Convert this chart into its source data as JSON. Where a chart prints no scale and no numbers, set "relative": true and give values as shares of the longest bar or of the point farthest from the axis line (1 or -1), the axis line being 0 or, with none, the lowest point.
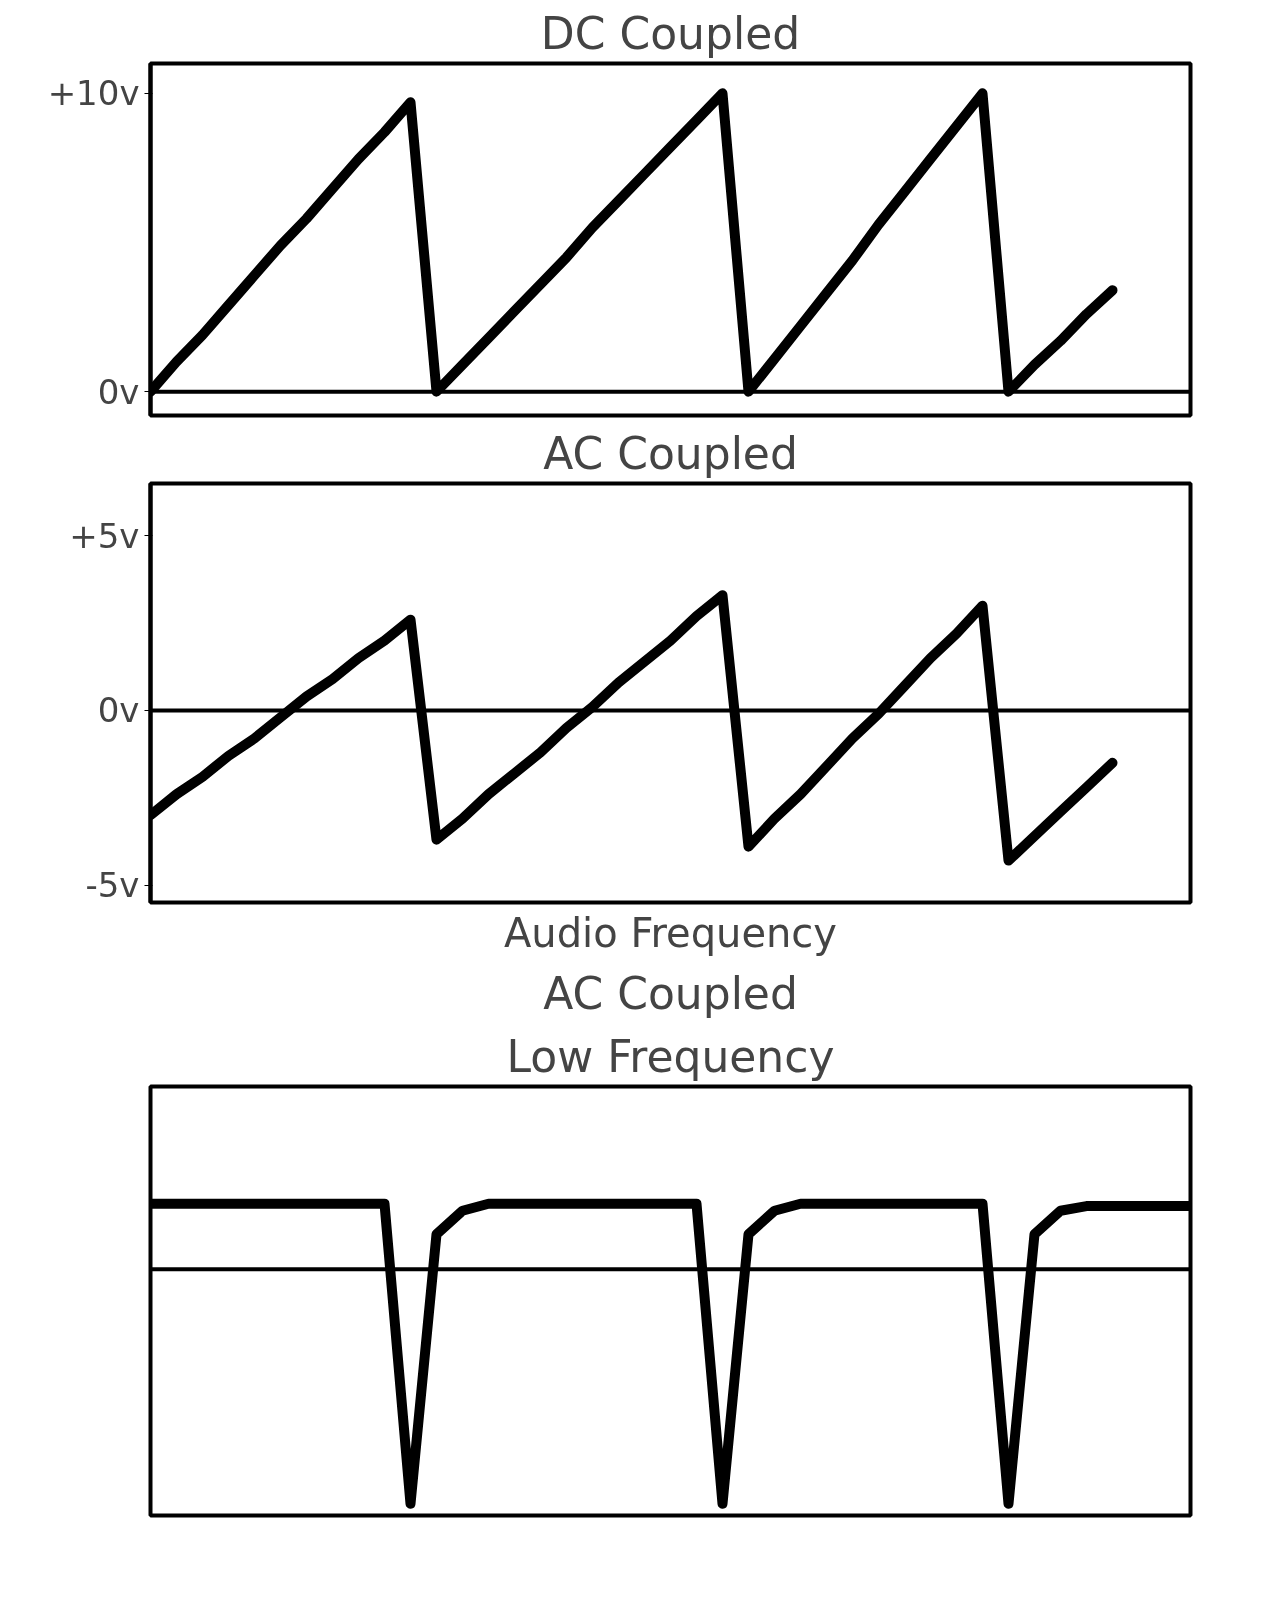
{
  "chart_data": [
    {
      "type": "line",
      "title": "DC Coupled",
      "categories": [
        null,
        null,
        null,
        null,
        null,
        null,
        null,
        null,
        null,
        null,
        null,
        null,
        null,
        null,
        null,
        null,
        null,
        null,
        null,
        null,
        null,
        null,
        null,
        null,
        null,
        null,
        null,
        null,
        null,
        null,
        null,
        null,
        null,
        null,
        null,
        null,
        null,
        null,
        null,
        null,
        null
      ],
      "series": [
        {
          "color": "#000000",
          "values": [
            0,
            1,
            1.9,
            2.9,
            3.9,
            4.9,
            5.8,
            6.8,
            7.8,
            8.7,
            9.7,
            0,
            0.9,
            1.8,
            2.7,
            3.6,
            4.5,
            5.5,
            6.4,
            7.3,
            8.2,
            9.1,
            10,
            0,
            1.1,
            2.2,
            3.3,
            4.4,
            5.6,
            6.7,
            7.8,
            8.9,
            10,
            0,
            0.9,
            1.7,
            2.6,
            3.4,
            null,
            null,
            null
          ]
        }
      ],
      "ylim": [
        -0.8,
        11
      ],
      "yticks": [
        {
          "value": 0,
          "label": "0v"
        },
        {
          "value": 10,
          "label": "+10v"
        }
      ],
      "ref_lines": [
        {
          "axis": "y",
          "value": 0,
          "color": "#000000"
        }
      ],
      "tick_labels": "y",
      "grid": false
    },
    {
      "type": "line",
      "title": "AC Coupled",
      "annotations": [
        "Audio Frequency"
      ],
      "categories": [
        null,
        null,
        null,
        null,
        null,
        null,
        null,
        null,
        null,
        null,
        null,
        null,
        null,
        null,
        null,
        null,
        null,
        null,
        null,
        null,
        null,
        null,
        null,
        null,
        null,
        null,
        null,
        null,
        null,
        null,
        null,
        null,
        null,
        null,
        null,
        null,
        null,
        null,
        null,
        null,
        null
      ],
      "series": [
        {
          "color": "#000000",
          "values": [
            -3,
            -2.4,
            -1.9,
            -1.3,
            -0.8,
            -0.2,
            0.4,
            0.9,
            1.5,
            2,
            2.6,
            -3.7,
            -3.1,
            -2.4,
            -1.8,
            -1.2,
            -0.5,
            0.1,
            0.8,
            1.4,
            2,
            2.7,
            3.3,
            -3.9,
            -3.1,
            -2.4,
            -1.6,
            -0.8,
            -0.1,
            0.7,
            1.5,
            2.2,
            3,
            -4.3,
            -3.6,
            -2.9,
            -2.2,
            -1.5,
            null,
            null,
            null
          ]
        }
      ],
      "ylim": [
        -5.5,
        6.5
      ],
      "yticks": [
        {
          "value": -5,
          "label": "-5v"
        },
        {
          "value": 0,
          "label": "0v"
        },
        {
          "value": 5,
          "label": "+5v"
        }
      ],
      "ref_lines": [
        {
          "axis": "y",
          "value": 0,
          "color": "#000000"
        }
      ],
      "tick_labels": "y",
      "grid": false
    },
    {
      "type": "line",
      "title": "AC Coupled",
      "subtitle": "Low Frequency",
      "relative": true,
      "categories": [
        null,
        null,
        null,
        null,
        null,
        null,
        null,
        null,
        null,
        null,
        null,
        null,
        null,
        null,
        null,
        null,
        null,
        null,
        null,
        null,
        null,
        null,
        null,
        null,
        null,
        null,
        null,
        null,
        null,
        null,
        null,
        null,
        null,
        null,
        null,
        null,
        null,
        null,
        null,
        null,
        null
      ],
      "series": [
        {
          "color": "#000000",
          "values": [
            0.28,
            0.28,
            0.28,
            0.28,
            0.28,
            0.28,
            0.28,
            0.28,
            0.28,
            0.28,
            -1,
            0.15,
            0.25,
            0.28,
            0.28,
            0.28,
            0.28,
            0.28,
            0.28,
            0.28,
            0.28,
            0.28,
            -1,
            0.15,
            0.25,
            0.28,
            0.28,
            0.28,
            0.28,
            0.28,
            0.28,
            0.28,
            0.28,
            -1,
            0.15,
            0.25,
            0.27,
            0.27,
            0.27,
            0.27,
            0.27
          ]
        }
      ],
      "tick_labels": false,
      "grid": false
    }
  ]
}
